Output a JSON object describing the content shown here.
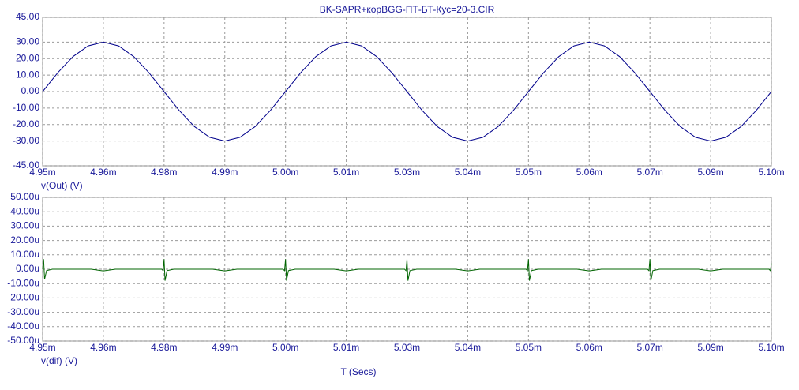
{
  "chart_data": [
    {
      "type": "line",
      "title": "BK-SAPR+корBGG-ПТ-БТ-Кус=20-3.CIR",
      "ylabel": "v(Out) (V)",
      "x": [
        4.95,
        4.953125,
        4.95625,
        4.959375,
        4.9625,
        4.965625,
        4.96875,
        4.971875,
        4.975,
        4.978125,
        4.98125,
        4.984375,
        4.9875,
        4.990625,
        4.99375,
        4.996875,
        5.0,
        5.003125,
        5.00625,
        5.009375,
        5.0125,
        5.015625,
        5.01875,
        5.021875,
        5.025,
        5.028125,
        5.03125,
        5.034375,
        5.0375,
        5.040625,
        5.04375,
        5.046875,
        5.05,
        5.053125,
        5.05625,
        5.059375,
        5.0625,
        5.065625,
        5.06875,
        5.071875,
        5.075,
        5.078125,
        5.08125,
        5.084375,
        5.0875,
        5.090625,
        5.09375,
        5.096875,
        5.1
      ],
      "series": [
        {
          "name": "v(Out)",
          "color": "#00008b",
          "values": [
            0,
            11.48,
            21.21,
            27.72,
            30,
            27.72,
            21.21,
            11.48,
            0,
            -11.48,
            -21.21,
            -27.72,
            -30,
            -27.72,
            -21.21,
            -11.48,
            0,
            11.48,
            21.21,
            27.72,
            30,
            27.72,
            21.21,
            11.48,
            0,
            -11.48,
            -21.21,
            -27.72,
            -30,
            -27.72,
            -21.21,
            -11.48,
            0,
            11.48,
            21.21,
            27.72,
            30,
            27.72,
            21.21,
            11.48,
            0,
            -11.48,
            -21.21,
            -27.72,
            -30,
            -27.72,
            -21.21,
            -11.48,
            0
          ]
        }
      ],
      "xlim": [
        4.95,
        5.1
      ],
      "xticks": [
        {
          "value": 4.95,
          "label": "4.95m"
        },
        {
          "value": 4.9625,
          "label": "4.96m"
        },
        {
          "value": 4.975,
          "label": "4.98m"
        },
        {
          "value": 4.9875,
          "label": "4.99m"
        },
        {
          "value": 5.0,
          "label": "5.00m"
        },
        {
          "value": 5.0125,
          "label": "5.01m"
        },
        {
          "value": 5.025,
          "label": "5.03m"
        },
        {
          "value": 5.0375,
          "label": "5.04m"
        },
        {
          "value": 5.05,
          "label": "5.05m"
        },
        {
          "value": 5.0625,
          "label": "5.06m"
        },
        {
          "value": 5.075,
          "label": "5.07m"
        },
        {
          "value": 5.0875,
          "label": "5.09m"
        },
        {
          "value": 5.1,
          "label": "5.10m"
        }
      ],
      "ylim": [
        -45,
        45
      ],
      "yticks": [
        {
          "value": 45,
          "label": "45.00"
        },
        {
          "value": 30,
          "label": "30.00"
        },
        {
          "value": 20,
          "label": "20.00"
        },
        {
          "value": 10,
          "label": "10.00"
        },
        {
          "value": 0,
          "label": "0.00"
        },
        {
          "value": -10,
          "label": "-10.00"
        },
        {
          "value": -20,
          "label": "-20.00"
        },
        {
          "value": -30,
          "label": "-30.00"
        },
        {
          "value": -45,
          "label": "-45.00"
        }
      ],
      "grid": true
    },
    {
      "type": "line",
      "ylabel": "v(dif) (V)",
      "xlabel": "T (Secs)",
      "x": [
        4.95,
        4.9502,
        4.9504,
        4.9508,
        4.952,
        4.96,
        4.9625,
        4.965,
        4.9745,
        4.9748,
        4.975,
        4.9752,
        4.9756,
        4.977,
        4.985,
        4.9875,
        4.99,
        4.9995,
        4.9998,
        5.0,
        5.0002,
        5.0006,
        5.002,
        5.01,
        5.0125,
        5.015,
        5.0245,
        5.0248,
        5.025,
        5.0252,
        5.0256,
        5.027,
        5.035,
        5.0375,
        5.04,
        5.0495,
        5.0498,
        5.05,
        5.0502,
        5.0506,
        5.052,
        5.06,
        5.0625,
        5.065,
        5.0745,
        5.0748,
        5.075,
        5.0752,
        5.0756,
        5.077,
        5.085,
        5.0875,
        5.09,
        5.0995,
        5.0998,
        5.1
      ],
      "series": [
        {
          "name": "v(dif)",
          "color": "#006400",
          "values": [
            0,
            7,
            -7,
            -1,
            0,
            0,
            -1.2,
            0,
            0,
            -1,
            7,
            -8,
            -1,
            0,
            0,
            -1.2,
            0,
            0,
            -1,
            7,
            -8,
            -1,
            0,
            0,
            -1.2,
            0,
            0,
            -1,
            7,
            -8,
            -1,
            0,
            0,
            -1.2,
            0,
            0,
            -1,
            7,
            -8,
            -1,
            0,
            0,
            -1.2,
            0,
            0,
            -1,
            7,
            -8,
            -1,
            0,
            0,
            -1.2,
            0,
            0,
            -1,
            4
          ]
        }
      ],
      "xlim": [
        4.95,
        5.1
      ],
      "xticks": [
        {
          "value": 4.95,
          "label": "4.95m"
        },
        {
          "value": 4.9625,
          "label": "4.96m"
        },
        {
          "value": 4.975,
          "label": "4.98m"
        },
        {
          "value": 4.9875,
          "label": "4.99m"
        },
        {
          "value": 5.0,
          "label": "5.00m"
        },
        {
          "value": 5.0125,
          "label": "5.01m"
        },
        {
          "value": 5.025,
          "label": "5.03m"
        },
        {
          "value": 5.0375,
          "label": "5.04m"
        },
        {
          "value": 5.05,
          "label": "5.05m"
        },
        {
          "value": 5.0625,
          "label": "5.06m"
        },
        {
          "value": 5.075,
          "label": "5.07m"
        },
        {
          "value": 5.0875,
          "label": "5.09m"
        },
        {
          "value": 5.1,
          "label": "5.10m"
        }
      ],
      "ylim": [
        -50,
        50
      ],
      "yticks": [
        {
          "value": 50,
          "label": "50.00u"
        },
        {
          "value": 40,
          "label": "40.00u"
        },
        {
          "value": 30,
          "label": "30.00u"
        },
        {
          "value": 20,
          "label": "20.00u"
        },
        {
          "value": 10,
          "label": "10.00u"
        },
        {
          "value": 0,
          "label": "0.00u"
        },
        {
          "value": -10,
          "label": "-10.00u"
        },
        {
          "value": -20,
          "label": "-20.00u"
        },
        {
          "value": -30,
          "label": "-30.00u"
        },
        {
          "value": -40,
          "label": "-40.00u"
        },
        {
          "value": -50,
          "label": "-50.00u"
        }
      ],
      "grid": true
    }
  ]
}
